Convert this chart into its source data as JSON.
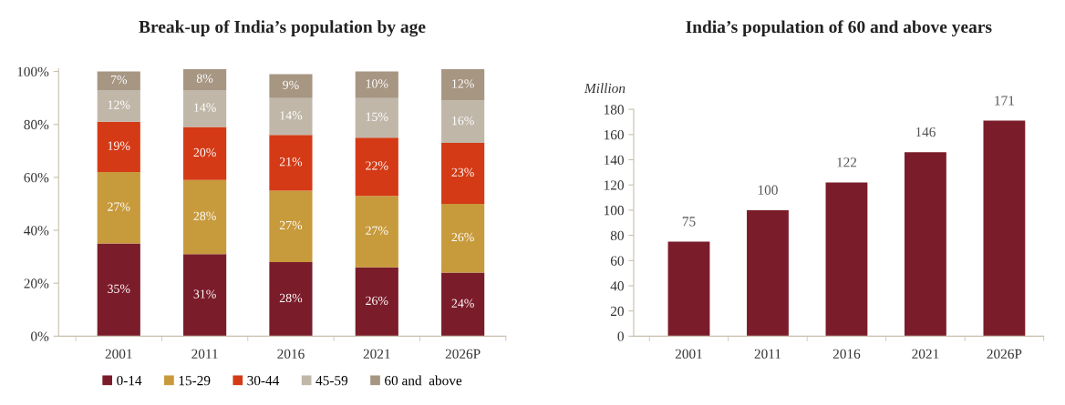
{
  "chart_data": [
    {
      "type": "bar",
      "title": "Break-up of India’s population by age",
      "stacked": true,
      "categories": [
        "2001",
        "2011",
        "2016",
        "2021",
        "2026P"
      ],
      "ylim": [
        0,
        101
      ],
      "yticks": [
        {
          "value": 0,
          "label": "0%"
        },
        {
          "value": 20,
          "label": "20%"
        },
        {
          "value": 40,
          "label": "40%"
        },
        {
          "value": 60,
          "label": "60%"
        },
        {
          "value": 80,
          "label": "80%"
        },
        {
          "value": 100,
          "label": "100%"
        }
      ],
      "legend": "bottom",
      "grid": false,
      "series": [
        {
          "name": "0-14",
          "color": "#7b1c2a",
          "values": [
            35,
            31,
            28,
            26,
            24
          ],
          "value_labels": [
            "35%",
            "31%",
            "28%",
            "26%",
            "24%"
          ]
        },
        {
          "name": "15-29",
          "color": "#c79a3c",
          "values": [
            27,
            28,
            27,
            27,
            26
          ],
          "value_labels": [
            "27%",
            "28%",
            "27%",
            "27%",
            "26%"
          ]
        },
        {
          "name": "30-44",
          "color": "#d43a16",
          "values": [
            19,
            20,
            21,
            22,
            23
          ],
          "value_labels": [
            "19%",
            "20%",
            "21%",
            "22%",
            "23%"
          ]
        },
        {
          "name": "45-59",
          "color": "#c0b7a9",
          "values": [
            12,
            14,
            14,
            15,
            16
          ],
          "value_labels": [
            "12%",
            "14%",
            "14%",
            "15%",
            "16%"
          ]
        },
        {
          "name": "60 and  above",
          "color": "#a69682",
          "values": [
            7,
            8,
            9,
            10,
            12
          ],
          "value_labels": [
            "7%",
            "8%",
            "9%",
            "10%",
            "12%"
          ]
        }
      ]
    },
    {
      "type": "bar",
      "title": "India’s population of 60 and above years",
      "ylabel": "Million",
      "categories": [
        "2001",
        "2011",
        "2016",
        "2021",
        "2026P"
      ],
      "ylim": [
        0,
        180
      ],
      "yticks": [
        0,
        20,
        40,
        60,
        80,
        100,
        120,
        140,
        160,
        180
      ],
      "grid": false,
      "data_labels": true,
      "series": [
        {
          "color": "#7b1c2a",
          "values": [
            75,
            100,
            122,
            146,
            171
          ]
        }
      ]
    }
  ]
}
